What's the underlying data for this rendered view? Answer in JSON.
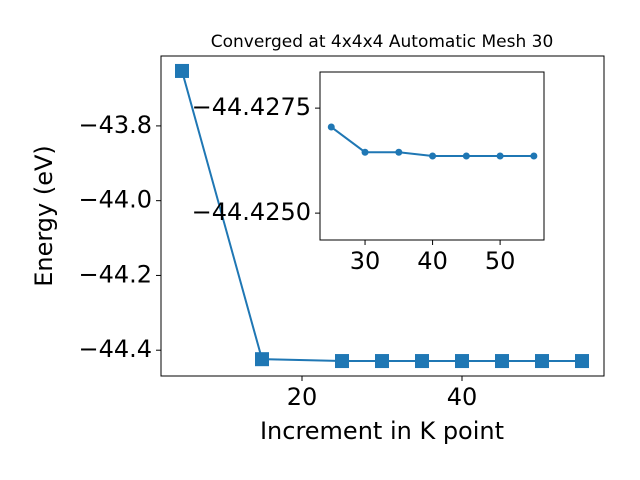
{
  "chart_data": [
    {
      "type": "line",
      "title": "Converged at 4x4x4 Automatic Mesh 30",
      "x_label": "Increment in K point",
      "y_label": "Energy (eV)",
      "marker": "square",
      "x": [
        5,
        15,
        25,
        30,
        35,
        40,
        45,
        50,
        55
      ],
      "series": [
        {
          "color": "#1f77b4",
          "values": [
            -43.653,
            -44.424,
            -44.429,
            -44.429,
            -44.429,
            -44.429,
            -44.429,
            -44.429,
            -44.429
          ]
        }
      ],
      "xlim": [
        2.375,
        57.75
      ],
      "xticks": [
        20,
        40
      ],
      "ylim": [
        -44.469,
        -43.613
      ],
      "yticks": [
        {
          "value": -44.4,
          "label": "−44.4"
        },
        {
          "value": -44.2,
          "label": "−44.2"
        },
        {
          "value": -44.0,
          "label": "−44.0"
        },
        {
          "value": -43.8,
          "label": "−43.8"
        }
      ]
    },
    {
      "type": "line",
      "marker": "circle",
      "x": [
        25,
        30,
        35,
        40,
        45,
        50,
        55
      ],
      "series": [
        {
          "color": "#1f77b4",
          "values": [
            -44.42705,
            -44.42645,
            -44.42645,
            -44.42636,
            -44.42636,
            -44.42636,
            -44.42636
          ]
        }
      ],
      "xlim": [
        23.33,
        56.5
      ],
      "xticks": [
        30,
        40,
        50
      ],
      "ylim": [
        -44.42436,
        -44.42836
      ],
      "yticks": [
        {
          "value": -44.425,
          "label": "−44.4250"
        },
        {
          "value": -44.4275,
          "label": "−44.4275"
        }
      ]
    }
  ]
}
